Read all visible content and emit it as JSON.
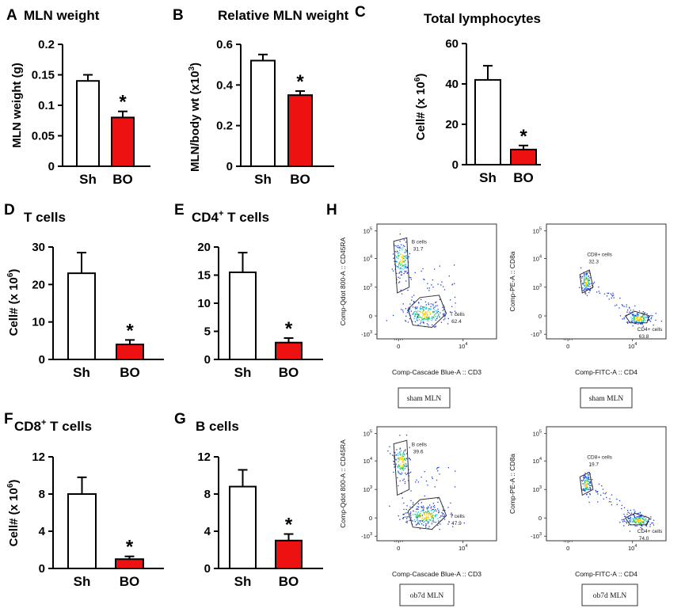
{
  "colors": {
    "sham": "#ffffff",
    "bo": "#ee1111",
    "outline": "#000000"
  },
  "chart_data": [
    {
      "id": "A",
      "type": "bar",
      "title": "MLN weight",
      "ylabel": "MLN weight (g)",
      "categories": [
        "Sh",
        "BO"
      ],
      "values": [
        0.14,
        0.08
      ],
      "errors": [
        0.01,
        0.01
      ],
      "ylim": [
        0,
        0.2
      ],
      "yticks": [
        0,
        0.05,
        0.1,
        0.15,
        0.2
      ],
      "ytick_labels": [
        "0",
        "0.05",
        "0.1",
        "0.15",
        "0.2"
      ],
      "significance": "*"
    },
    {
      "id": "B",
      "type": "bar",
      "title": "Relative MLN weight",
      "ylabel": "MLN/body wt (x10",
      "ylabel_sup": "3",
      "ylabel_end": ")",
      "categories": [
        "Sh",
        "BO"
      ],
      "values": [
        0.52,
        0.35
      ],
      "errors": [
        0.03,
        0.02
      ],
      "ylim": [
        0,
        0.6
      ],
      "yticks": [
        0,
        0.2,
        0.4,
        0.6
      ],
      "ytick_labels": [
        "0",
        "0.2",
        "0.4",
        "0.6"
      ],
      "significance": "*"
    },
    {
      "id": "C",
      "type": "bar",
      "title": "Total lymphocytes",
      "ylabel": "Cell# (x 10",
      "ylabel_sup": "6",
      "ylabel_end": ")",
      "categories": [
        "Sh",
        "BO"
      ],
      "values": [
        42,
        7.5
      ],
      "errors": [
        7,
        2
      ],
      "ylim": [
        0,
        60
      ],
      "yticks": [
        0,
        20,
        40,
        60
      ],
      "ytick_labels": [
        "0",
        "20",
        "40",
        "60"
      ],
      "significance": "*"
    },
    {
      "id": "D",
      "type": "bar",
      "title": "T cells",
      "ylabel": "Cell# (x 10",
      "ylabel_sup": "6",
      "ylabel_end": ")",
      "categories": [
        "Sh",
        "BO"
      ],
      "values": [
        23,
        4
      ],
      "errors": [
        5.5,
        1.2
      ],
      "ylim": [
        0,
        30
      ],
      "yticks": [
        0,
        10,
        20,
        30
      ],
      "ytick_labels": [
        "0",
        "10",
        "20",
        "30"
      ],
      "significance": "*"
    },
    {
      "id": "E",
      "type": "bar",
      "title": "CD4",
      "title_sup": "+",
      "title_end": " T cells",
      "ylabel": "",
      "categories": [
        "Sh",
        "BO"
      ],
      "values": [
        15.5,
        3
      ],
      "errors": [
        3.5,
        0.8
      ],
      "ylim": [
        0,
        20
      ],
      "yticks": [
        0,
        5,
        10,
        15,
        20
      ],
      "ytick_labels": [
        "0",
        "5",
        "10",
        "15",
        "20"
      ],
      "significance": "*"
    },
    {
      "id": "F",
      "type": "bar",
      "title": "CD8",
      "title_sup": "+",
      "title_end": " T cells",
      "ylabel": "Cell# (x 10",
      "ylabel_sup": "6",
      "ylabel_end": ")",
      "categories": [
        "Sh",
        "BO"
      ],
      "values": [
        8,
        1
      ],
      "errors": [
        1.8,
        0.3
      ],
      "ylim": [
        0,
        12
      ],
      "yticks": [
        0,
        4,
        8,
        12
      ],
      "ytick_labels": [
        "0",
        "4",
        "8",
        "12"
      ],
      "significance": "*"
    },
    {
      "id": "G",
      "type": "bar",
      "title": "B cells",
      "ylabel": "",
      "categories": [
        "Sh",
        "BO"
      ],
      "values": [
        8.8,
        3
      ],
      "errors": [
        1.8,
        0.7
      ],
      "ylim": [
        0,
        12
      ],
      "yticks": [
        0,
        4,
        8,
        12
      ],
      "ytick_labels": [
        "0",
        "4",
        "8",
        "12"
      ],
      "significance": "*"
    }
  ],
  "flow": {
    "letter": "H",
    "ytick_labels": [
      "10",
      "10",
      "10",
      "0",
      "-10"
    ],
    "ytick_sups": [
      "5",
      "4",
      "3",
      "",
      "3"
    ],
    "xtick_labels": [
      "0",
      "10"
    ],
    "xtick_sups": [
      "",
      "4"
    ],
    "plots": [
      {
        "ylabel": "Comp-Qdot 800-A :: CD45RA",
        "xlabel": "Comp-Cascade Blue-A :: CD3",
        "gate1_name": "B cells",
        "gate1_value": "31.7",
        "gate2_name": "T cells",
        "gate2_value": "62.4",
        "sample": "sham MLN"
      },
      {
        "ylabel": "Comp-PE-A :: CD8a",
        "xlabel": "Comp-FITC-A :: CD4",
        "gate1_name": "CD8+ cells",
        "gate1_value": "32.3",
        "gate2_name": "CD4+ cells",
        "gate2_value": "63.8",
        "sample": "sham MLN"
      },
      {
        "ylabel": "Comp-Qdot 800-A :: CD45RA",
        "xlabel": "Comp-Cascade Blue-A :: CD3",
        "gate1_name": "B cells",
        "gate1_value": "39.6",
        "gate2_name": "T cells",
        "gate2_value": "47.9",
        "sample": "ob7d MLN"
      },
      {
        "ylabel": "Comp-PE-A :: CD8a",
        "xlabel": "Comp-FITC-A :: CD4",
        "gate1_name": "CD8+ cells",
        "gate1_value": "19.7",
        "gate2_name": "CD4+ cells",
        "gate2_value": "74.0",
        "sample": "ob7d MLN"
      }
    ]
  }
}
